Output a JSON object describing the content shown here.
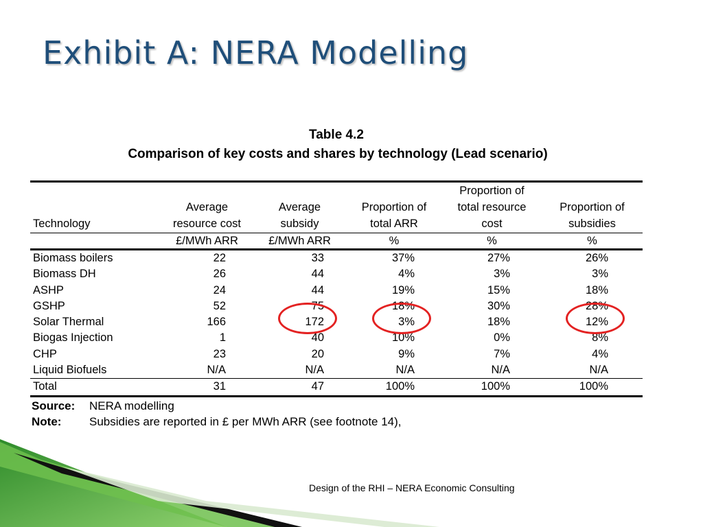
{
  "slide": {
    "title": "Exhibit A: NERA Modelling",
    "footer": "Design of the RHI – NERA Economic Consulting"
  },
  "table": {
    "number": "Table 4.2",
    "caption": "Comparison of key costs and shares by technology (Lead scenario)",
    "columns": [
      "Technology",
      "Average resource cost",
      "Average subsidy",
      "Proportion of total ARR",
      "Proportion of total resource cost",
      "Proportion of subsidies"
    ],
    "header_lines": {
      "c0": [
        "",
        "",
        "Technology"
      ],
      "c1": [
        "",
        "Average",
        "resource cost"
      ],
      "c2": [
        "",
        "Average",
        "subsidy"
      ],
      "c3": [
        "",
        "Proportion of",
        "total ARR"
      ],
      "c4": [
        "Proportion of",
        "total resource",
        "cost"
      ],
      "c5": [
        "",
        "Proportion of",
        "subsidies"
      ]
    },
    "units": [
      "",
      "£/MWh ARR",
      "£/MWh ARR",
      "%",
      "%",
      "%"
    ],
    "rows": [
      [
        "Biomass boilers",
        "22",
        "33",
        "37%",
        "27%",
        "26%"
      ],
      [
        "Biomass DH",
        "26",
        "44",
        "4%",
        "3%",
        "3%"
      ],
      [
        "ASHP",
        "24",
        "44",
        "19%",
        "15%",
        "18%"
      ],
      [
        "GSHP",
        "52",
        "75",
        "18%",
        "30%",
        "28%"
      ],
      [
        "Solar Thermal",
        "166",
        "172",
        "3%",
        "18%",
        "12%"
      ],
      [
        "Biogas Injection",
        "1",
        "40",
        "10%",
        "0%",
        "8%"
      ],
      [
        "CHP",
        "23",
        "20",
        "9%",
        "7%",
        "4%"
      ],
      [
        "Liquid Biofuels",
        "N/A",
        "N/A",
        "N/A",
        "N/A",
        "N/A"
      ]
    ],
    "total": [
      "Total",
      "31",
      "47",
      "100%",
      "100%",
      "100%"
    ],
    "highlighted_row": "Solar Thermal",
    "highlight_color": "#e32222"
  },
  "notes": {
    "source_label": "Source:",
    "source_text": "NERA modelling",
    "note_label": "Note:",
    "note_text": "Subsidies are reported in £ per MWh ARR (see footnote 14),"
  },
  "colors": {
    "title": "#1f4e79",
    "accent_green": "#4aa83a",
    "highlight": "#e32222"
  }
}
